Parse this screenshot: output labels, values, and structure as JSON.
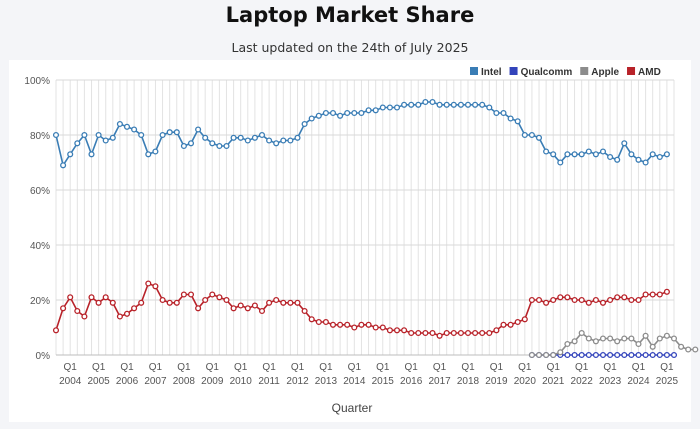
{
  "chart_data": {
    "type": "line",
    "title": "Laptop Market Share",
    "subtitle": "Last updated on the 24th of July 2025",
    "xlabel": "Quarter",
    "ylabel": "",
    "ylim": [
      0,
      100
    ],
    "yticks": [
      0,
      20,
      40,
      60,
      80,
      100
    ],
    "ytick_labels": [
      "0%",
      "20%",
      "40%",
      "60%",
      "80%",
      "100%"
    ],
    "grid": true,
    "legend_position": "top-right",
    "year_labels": [
      "2004",
      "2005",
      "2006",
      "2007",
      "2008",
      "2009",
      "2010",
      "2011",
      "2012",
      "2013",
      "2014",
      "2015",
      "2016",
      "2017",
      "2018",
      "2019",
      "2020",
      "2021",
      "2022",
      "2023",
      "2024",
      "2025"
    ],
    "quarter_tick_label": "Q1",
    "first_quarter": "2003 Q3",
    "series": [
      {
        "name": "Intel",
        "color": "#3a7db5",
        "start_index": 0,
        "values": [
          80,
          69,
          73,
          77,
          80,
          73,
          80,
          78,
          79,
          84,
          83,
          82,
          80,
          73,
          74,
          80,
          81,
          81,
          76,
          77,
          82,
          79,
          77,
          76,
          76,
          79,
          79,
          78,
          79,
          80,
          78,
          77,
          78,
          78,
          79,
          84,
          86,
          87,
          88,
          88,
          87,
          88,
          88,
          88,
          89,
          89,
          90,
          90,
          90,
          91,
          91,
          91,
          92,
          92,
          91,
          91,
          91,
          91,
          91,
          91,
          91,
          90,
          88,
          88,
          86,
          85,
          80,
          80,
          79,
          74,
          73,
          70,
          73,
          73,
          73,
          74,
          73,
          74,
          72,
          71,
          77,
          73,
          71,
          70,
          73,
          72,
          73
        ]
      },
      {
        "name": "Qualcomm",
        "color": "#3344bb",
        "start_index": 67,
        "values": [
          0,
          0,
          0,
          0,
          0,
          0,
          0,
          0,
          0,
          0,
          0,
          0,
          0,
          0,
          0,
          0,
          0,
          0,
          0,
          0,
          0
        ]
      },
      {
        "name": "Apple",
        "color": "#8c8c8c",
        "start_index": 67,
        "values": [
          0,
          0,
          0,
          0,
          1,
          4,
          5,
          8,
          6,
          5,
          6,
          6,
          5,
          6,
          6,
          4,
          7,
          3,
          6,
          7,
          6,
          3,
          2,
          2
        ]
      },
      {
        "name": "AMD",
        "color": "#b82229",
        "start_index": 0,
        "values": [
          9,
          17,
          21,
          16,
          14,
          21,
          19,
          21,
          19,
          14,
          15,
          17,
          19,
          26,
          25,
          20,
          19,
          19,
          22,
          22,
          17,
          20,
          22,
          21,
          20,
          17,
          18,
          17,
          18,
          16,
          19,
          20,
          19,
          19,
          19,
          16,
          13,
          12,
          12,
          11,
          11,
          11,
          10,
          11,
          11,
          10,
          10,
          9,
          9,
          9,
          8,
          8,
          8,
          8,
          7,
          8,
          8,
          8,
          8,
          8,
          8,
          8,
          9,
          11,
          11,
          12,
          13,
          20,
          20,
          19,
          20,
          21,
          21,
          20,
          20,
          19,
          20,
          19,
          20,
          21,
          21,
          20,
          20,
          22,
          22,
          22,
          23
        ]
      }
    ]
  }
}
